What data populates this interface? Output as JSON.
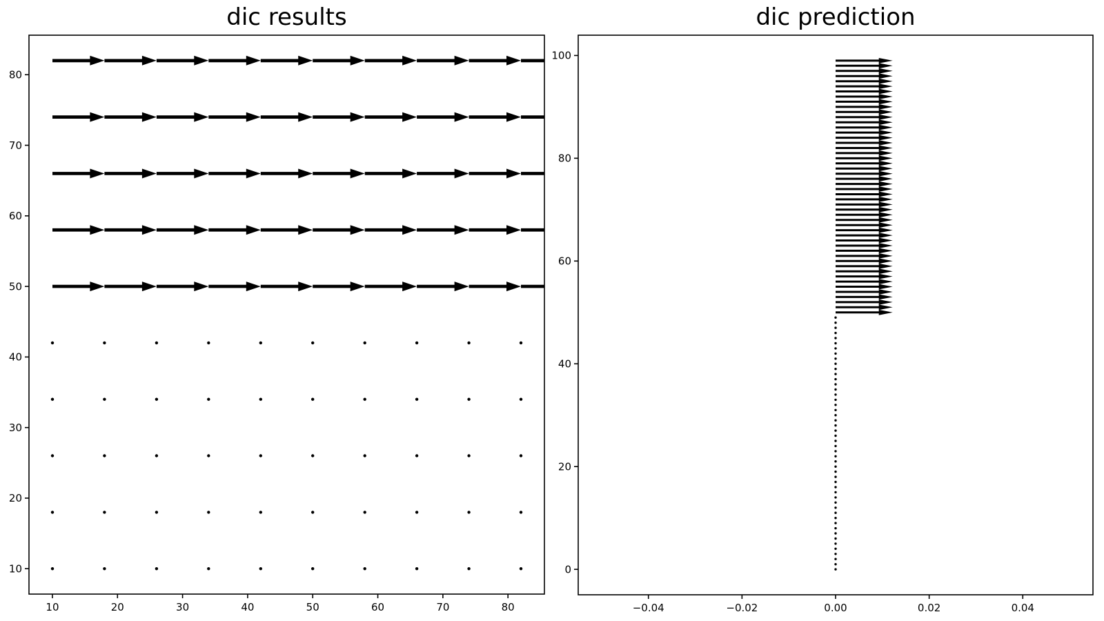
{
  "figure": {
    "background": "#ffffff",
    "ink": "#000000"
  },
  "chart_data": [
    {
      "type": "quiver",
      "title": "dic results",
      "xlabel": "",
      "ylabel": "",
      "xlim": [
        6.4,
        85.6
      ],
      "ylim": [
        6.4,
        85.6
      ],
      "grid": false,
      "legend": null,
      "x_tick_values": [
        10,
        20,
        30,
        40,
        50,
        60,
        70,
        80
      ],
      "x_tick_labels": [
        "10",
        "20",
        "30",
        "40",
        "50",
        "60",
        "70",
        "80"
      ],
      "y_tick_values": [
        10,
        20,
        30,
        40,
        50,
        60,
        70,
        80
      ],
      "y_tick_labels": [
        "10",
        "20",
        "30",
        "40",
        "50",
        "60",
        "70",
        "80"
      ],
      "grid_x": [
        10,
        18,
        26,
        34,
        42,
        50,
        58,
        66,
        74,
        82
      ],
      "arrow_rows_y": [
        50,
        58,
        66,
        74,
        82
      ],
      "dot_rows_y": [
        10,
        18,
        26,
        34,
        42
      ],
      "arrow_u": 8,
      "arrow_v": 0,
      "note": "rows y>=50 show uniform rightward displacement arrows of length 8; rows y<50 show zero displacement dots"
    },
    {
      "type": "quiver",
      "title": "dic prediction",
      "xlabel": "",
      "ylabel": "",
      "xlim": [
        -0.055,
        0.055
      ],
      "ylim": [
        -4.95,
        103.95
      ],
      "grid": false,
      "legend": null,
      "x_tick_values": [
        -0.04,
        -0.02,
        0.0,
        0.02,
        0.04
      ],
      "x_tick_labels": [
        "−0.04",
        "−0.02",
        "0.00",
        "0.02",
        "0.04"
      ],
      "y_tick_values": [
        0,
        20,
        40,
        60,
        80,
        100
      ],
      "y_tick_labels": [
        "0",
        "20",
        "40",
        "60",
        "80",
        "100"
      ],
      "arrow_x": 0.0,
      "arrows_y": {
        "start": 50,
        "end": 99,
        "step": 1
      },
      "dots_y": {
        "start": 0,
        "end": 49,
        "step": 1
      },
      "arrow_u": 0.0122,
      "arrow_v": 0,
      "note": "column at x=0: y=50..99 rightward arrows of length ~0.012; y=0..49 zero displacement dots"
    }
  ]
}
